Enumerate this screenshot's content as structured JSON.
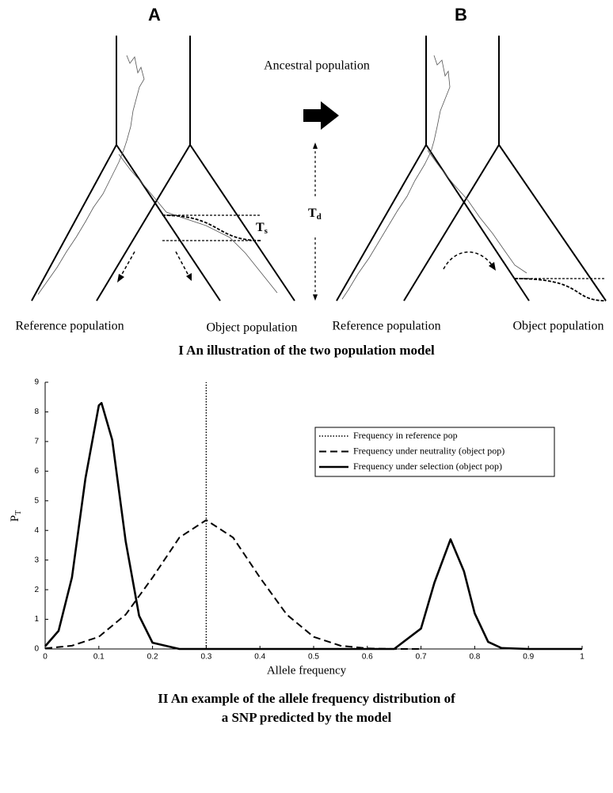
{
  "diagram": {
    "panel_a": "A",
    "panel_b": "B",
    "ancestral": "Ancestral population",
    "ts": {
      "main": "T",
      "sub": "s"
    },
    "td": {
      "main": "T",
      "sub": "d"
    },
    "a_reference": "Reference population",
    "a_object": "Object population",
    "b_reference": "Reference population",
    "b_object": "Object population",
    "caption": "I An illustration of the two population model"
  },
  "chart_data": {
    "type": "line",
    "xlabel": "Allele frequency",
    "ylabel": {
      "main": "P",
      "sub": "T"
    },
    "xlim": [
      0,
      1
    ],
    "ylim": [
      0,
      9
    ],
    "xticks": [
      0,
      0.1,
      0.2,
      0.3,
      0.4,
      0.5,
      0.6,
      0.7,
      0.8,
      0.9,
      1
    ],
    "yticks": [
      0,
      1,
      2,
      3,
      4,
      5,
      6,
      7,
      8,
      9
    ],
    "legend": "upper right",
    "series": [
      {
        "name": "Frequency in reference pop",
        "color": "#000000",
        "style": "dotted",
        "x": [
          0.3,
          0.3
        ],
        "values": [
          0,
          9
        ]
      },
      {
        "name": "Frequency under neutrality (object pop)",
        "color": "#000000",
        "style": "dashed",
        "x": [
          0,
          0.05,
          0.1,
          0.15,
          0.2,
          0.25,
          0.3,
          0.35,
          0.4,
          0.45,
          0.5,
          0.55,
          0.6,
          0.65,
          0.7
        ],
        "values": [
          0.02,
          0.11,
          0.41,
          1.16,
          2.41,
          3.76,
          4.35,
          3.76,
          2.41,
          1.16,
          0.41,
          0.11,
          0.02,
          0,
          0
        ]
      },
      {
        "name": "Frequency under selection (object pop)",
        "color": "#000000",
        "style": "solid",
        "x": [
          0,
          0.025,
          0.05,
          0.075,
          0.1,
          0.105,
          0.125,
          0.15,
          0.175,
          0.2,
          0.25,
          0.65,
          0.7,
          0.725,
          0.755,
          0.78,
          0.8,
          0.825,
          0.85,
          0.9,
          1
        ],
        "values": [
          0.09,
          0.61,
          2.42,
          5.75,
          8.22,
          8.3,
          7.05,
          3.63,
          1.12,
          0.21,
          0,
          0,
          0.69,
          2.24,
          3.7,
          2.62,
          1.2,
          0.24,
          0.03,
          0,
          0
        ]
      }
    ],
    "caption": [
      "II An example of the allele frequency distribution of",
      "a SNP predicted by the model"
    ]
  }
}
